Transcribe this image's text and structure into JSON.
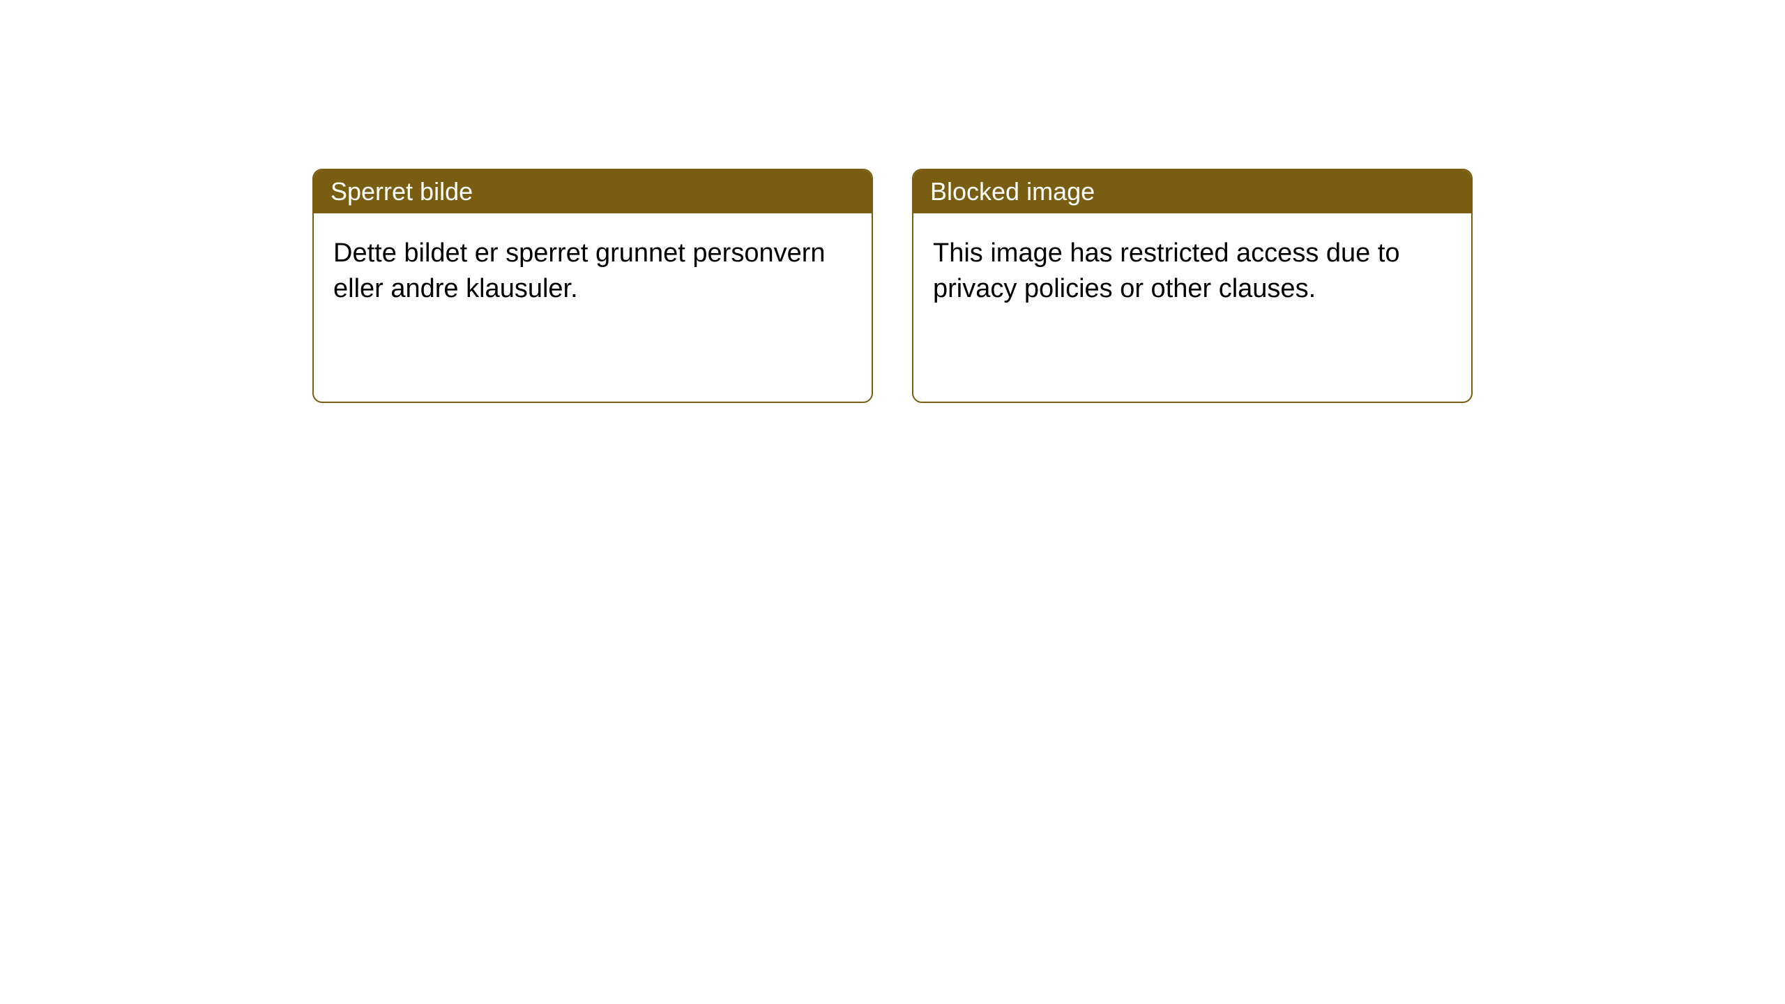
{
  "cards": [
    {
      "title": "Sperret bilde",
      "message": "Dette bildet er sperret grunnet personvern eller andre klausuler."
    },
    {
      "title": "Blocked image",
      "message": "This image has restricted access due to privacy policies or other clauses."
    }
  ],
  "style": {
    "header_bg": "#795e11",
    "header_fg": "#ffffff",
    "border_color": "#795e11",
    "body_bg": "#ffffff",
    "body_fg": "#000000",
    "border_radius": 14,
    "header_fontsize": 36,
    "body_fontsize": 38
  }
}
